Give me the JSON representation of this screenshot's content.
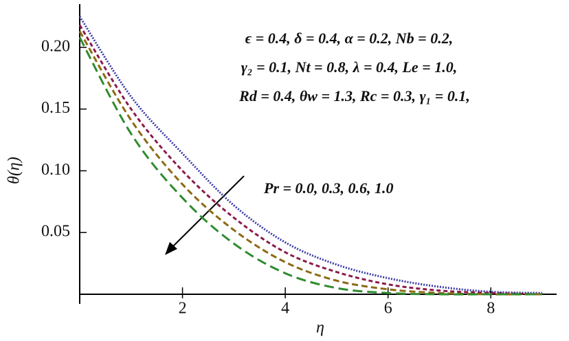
{
  "chart_data": {
    "type": "line",
    "ylabel": "θ(η)",
    "xlabel": "η",
    "annotations": [
      "ϵ = 0.4,  δ = 0.4,  α = 0.2,  Nb = 0.2,",
      "γ₂  = 0.1,  Nt = 0.8,  λ = 0.4,  Le = 1.0,",
      "Rd = 0.4,  θw = 1.3,  Rc = 0.3,  γ₁ = 0.1,",
      "Pr = 0.0,  0.3,  0.6,  1.0"
    ],
    "x": [
      0,
      1,
      2,
      3,
      4,
      5,
      6,
      7,
      8,
      9
    ],
    "series": [
      {
        "color": "#3a3aa8",
        "dash": "2 2",
        "values": [
          0.225,
          0.16,
          0.114,
          0.072,
          0.042,
          0.024,
          0.013,
          0.006,
          0.002,
          0.001
        ]
      },
      {
        "color": "#8b1a4a",
        "dash": "6 4",
        "values": [
          0.218,
          0.15,
          0.1,
          0.062,
          0.034,
          0.018,
          0.008,
          0.003,
          0.001,
          0
        ]
      },
      {
        "color": "#8b6a14",
        "dash": "9 5",
        "values": [
          0.213,
          0.141,
          0.089,
          0.052,
          0.026,
          0.011,
          0.004,
          0.001,
          0,
          0
        ]
      },
      {
        "color": "#2e8b2e",
        "dash": "14 7",
        "values": [
          0.208,
          0.13,
          0.078,
          0.041,
          0.017,
          0.005,
          0.001,
          0,
          0,
          0
        ]
      }
    ],
    "xlim": [
      0,
      9.2
    ],
    "ylim": [
      0,
      0.235
    ],
    "xticks": [
      2,
      4,
      6,
      8
    ],
    "yticks": [
      0.05,
      {
        "value": 0.1,
        "label": "0.10"
      },
      0.15,
      {
        "value": 0.2,
        "label": "0.20"
      }
    ]
  }
}
